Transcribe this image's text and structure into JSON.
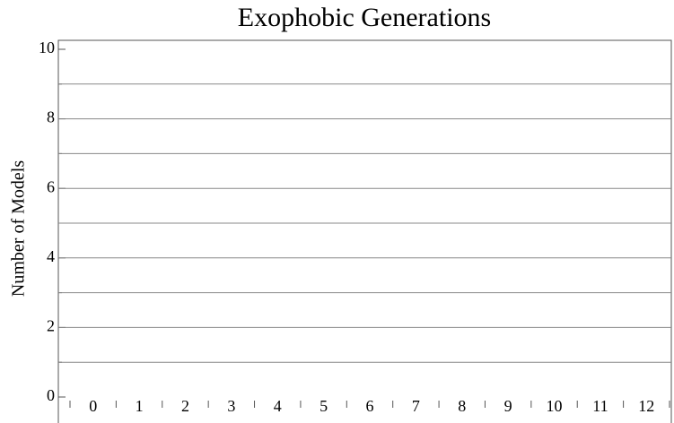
{
  "chart_data": {
    "type": "bar",
    "title": "Exophobic Generations",
    "y_label": "Number of Models",
    "categories": [
      "0",
      "1",
      "2",
      "3",
      "4",
      "5",
      "6",
      "7",
      "8",
      "9",
      "10",
      "11",
      "12"
    ],
    "values": [
      0,
      0,
      0,
      0,
      0,
      0,
      0,
      0,
      0,
      0,
      0,
      0,
      0
    ],
    "color": "#e0a040",
    "ylim": [
      0,
      10
    ],
    "yticks": [
      0,
      2,
      4,
      6,
      8,
      10
    ],
    "yminorticks": [
      1,
      3,
      5,
      7,
      9
    ],
    "grid": true
  }
}
